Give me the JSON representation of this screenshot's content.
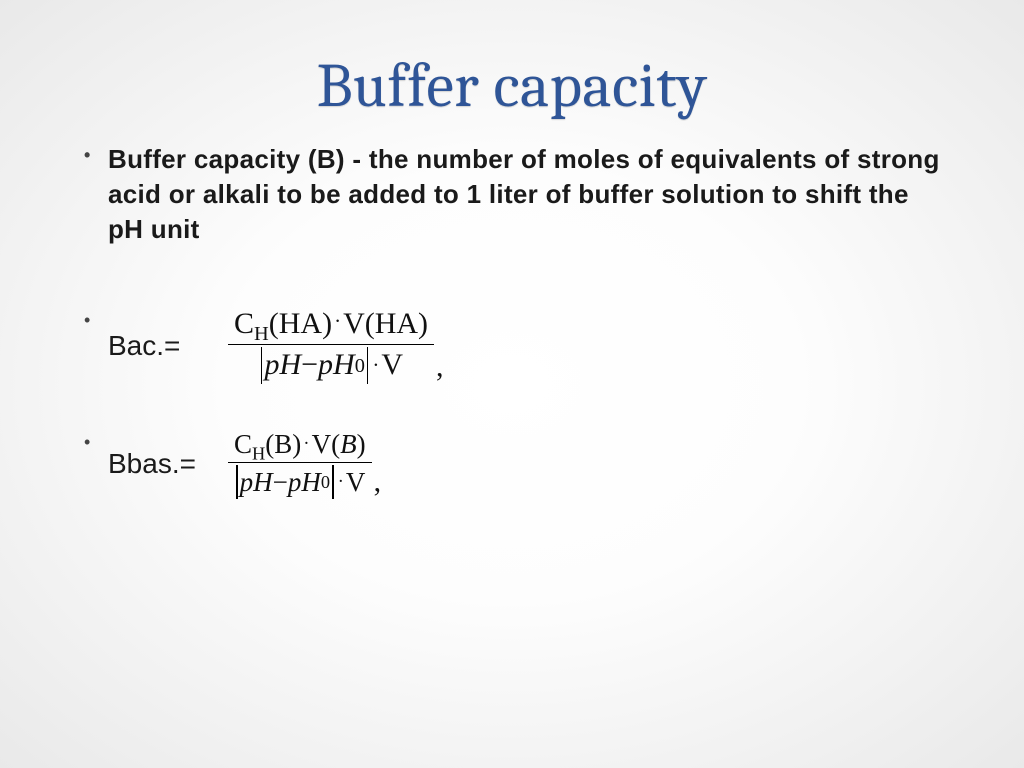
{
  "colors": {
    "title": "#2f5597",
    "body_text": "#1a1a1a",
    "background_center": "#ffffff",
    "background_edge": "#e9e9e9"
  },
  "typography": {
    "title_fontsize": 62,
    "title_font": "Cambria",
    "body_fontsize": 26,
    "body_font": "Century Gothic",
    "formula_fontsize": 30,
    "formula_font": "Times New Roman"
  },
  "title": "Buffer capacity",
  "bullets": {
    "definition": "Buffer capacity (B) - the number of moles of equivalents of strong acid or alkali to be added to 1 liter of buffer solution to shift the pH unit",
    "eq1": {
      "label": "Вас.=",
      "numerator": {
        "c_sym": "C",
        "c_sub": "H",
        "arg1": "(HA)",
        "dot": "·",
        "v_sym": "V",
        "arg2": "(HA)"
      },
      "denominator": {
        "ph": "pH",
        "minus": " − ",
        "ph0": "pH",
        "ph0_sub": "0",
        "dot": "·",
        "v": "V"
      },
      "comma": ","
    },
    "eq2": {
      "label": "Вbas.=",
      "numerator": {
        "c_sym": "C",
        "c_sub": "H",
        "arg1": "(B)",
        "dot": "·",
        "v_sym": "V",
        "arg2_open": "(",
        "arg2_B": "B",
        "arg2_close": ")"
      },
      "denominator": {
        "ph": "pH",
        "minus": " − ",
        "ph0": "pH",
        "ph0_sub": "0",
        "dot": "·",
        "v": "V"
      },
      "comma": ","
    }
  }
}
